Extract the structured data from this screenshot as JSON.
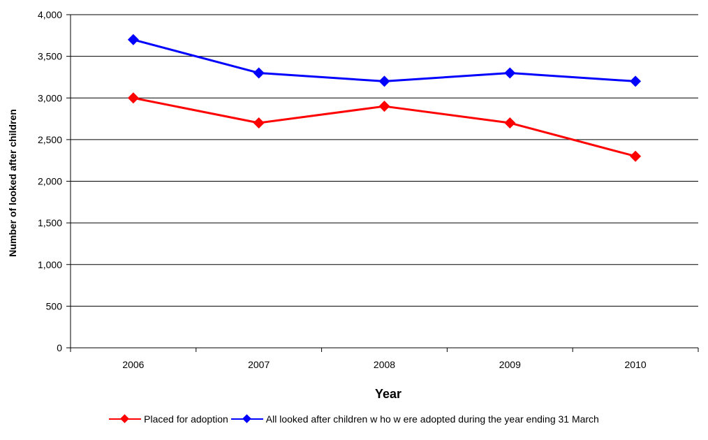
{
  "chart_data": {
    "type": "line",
    "categories": [
      "2006",
      "2007",
      "2008",
      "2009",
      "2010"
    ],
    "series": [
      {
        "name": "Placed for adoption",
        "color": "#ff0000",
        "marker": "diamond",
        "values": [
          3000,
          2700,
          2900,
          2700,
          2300
        ]
      },
      {
        "name": "All looked after children w ho w ere adopted during the year ending 31 March",
        "color": "#0000ff",
        "marker": "diamond",
        "values": [
          3700,
          3300,
          3200,
          3300,
          3200
        ]
      }
    ],
    "xlabel": "Year",
    "ylabel": "Number of looked after children",
    "ylim": [
      0,
      4000
    ],
    "yticks": [
      "0",
      "500",
      "1,000",
      "1,500",
      "2,000",
      "2,500",
      "3,000",
      "3,500",
      "4,000"
    ],
    "ytick_values": [
      0,
      500,
      1000,
      1500,
      2000,
      2500,
      3000,
      3500,
      4000
    ],
    "grid": "horizontal",
    "legend_position": "bottom"
  }
}
